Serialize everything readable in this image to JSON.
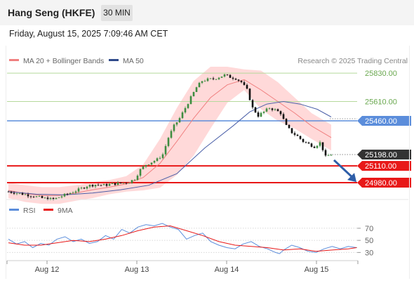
{
  "header": {
    "title": "Hang Seng (HKFE)",
    "timeframe": "30 MIN"
  },
  "datetime": "Friday, August 15, 2025 7:09:46 AM CET",
  "legend": {
    "ma20_bb": "MA 20 + Bollinger Bands",
    "ma50": "MA 50",
    "credit": "Research © 2025 Trading Central"
  },
  "rsi_legend": {
    "rsi": "RSI",
    "ma9": "9MA"
  },
  "colors": {
    "candle_up": "#3d8c40",
    "candle_down": "#111111",
    "bollinger": "#ffcccc",
    "ma20": "#f08080",
    "ma50": "#4a5fa8",
    "resistance": "#b5d99c",
    "pivot": "#5b8ddb",
    "support": "#e81818",
    "rsi": "#5b8ddb",
    "ma9": "#e81818",
    "arrow": "#2e5ea8"
  },
  "chart_data": [
    {
      "type": "candlestick",
      "title": "",
      "ylim": [
        24860,
        25880
      ],
      "x_ticks": [
        "Aug 12",
        "Aug 13",
        "Aug 14",
        "Aug 15"
      ],
      "levels": [
        {
          "role": "resistance",
          "value": 25830,
          "label": "25830.00"
        },
        {
          "role": "resistance",
          "value": 25610,
          "label": "25610.00"
        },
        {
          "role": "pivot",
          "value": 25460,
          "label": "25460.00"
        },
        {
          "role": "support",
          "value": 25110,
          "label": "25110.00"
        },
        {
          "role": "support",
          "value": 24980,
          "label": "24980.00"
        }
      ],
      "last_price": {
        "value": 25198,
        "label": "25198.00"
      },
      "series": [
        {
          "name": "MA 20 + Bollinger Bands"
        },
        {
          "name": "MA 50"
        }
      ],
      "close_points": [
        [
          0,
          24910
        ],
        [
          4,
          24895
        ],
        [
          8,
          24880
        ],
        [
          12,
          24860
        ],
        [
          16,
          24850
        ],
        [
          19,
          24875
        ],
        [
          22,
          24900
        ],
        [
          25,
          24925
        ],
        [
          28,
          24955
        ],
        [
          31,
          24965
        ],
        [
          34,
          24960
        ],
        [
          37,
          24970
        ],
        [
          40,
          24975
        ],
        [
          43,
          24985
        ],
        [
          45,
          25010
        ],
        [
          47,
          25080
        ],
        [
          49,
          25120
        ],
        [
          51,
          25140
        ],
        [
          53,
          25160
        ],
        [
          55,
          25200
        ],
        [
          57,
          25330
        ],
        [
          59,
          25420
        ],
        [
          61,
          25480
        ],
        [
          63,
          25560
        ],
        [
          65,
          25640
        ],
        [
          67,
          25720
        ],
        [
          69,
          25770
        ],
        [
          71,
          25780
        ],
        [
          73,
          25785
        ],
        [
          75,
          25800
        ],
        [
          77,
          25815
        ],
        [
          79,
          25800
        ],
        [
          81,
          25790
        ],
        [
          83,
          25760
        ],
        [
          85,
          25700
        ],
        [
          87,
          25560
        ],
        [
          89,
          25500
        ],
        [
          91,
          25530
        ],
        [
          93,
          25560
        ],
        [
          95,
          25545
        ],
        [
          97,
          25520
        ],
        [
          99,
          25420
        ],
        [
          101,
          25370
        ],
        [
          103,
          25340
        ],
        [
          105,
          25300
        ],
        [
          107,
          25280
        ],
        [
          109,
          25260
        ],
        [
          111,
          25290
        ],
        [
          112,
          25240
        ],
        [
          113,
          25180
        ],
        [
          114,
          25190
        ],
        [
          115,
          25198
        ]
      ],
      "ma20": [
        [
          0,
          24920
        ],
        [
          6,
          24895
        ],
        [
          12,
          24880
        ],
        [
          18,
          24880
        ],
        [
          24,
          24900
        ],
        [
          30,
          24925
        ],
        [
          36,
          24945
        ],
        [
          42,
          24970
        ],
        [
          48,
          25020
        ],
        [
          54,
          25130
        ],
        [
          60,
          25300
        ],
        [
          66,
          25480
        ],
        [
          72,
          25640
        ],
        [
          78,
          25740
        ],
        [
          84,
          25780
        ],
        [
          90,
          25700
        ],
        [
          96,
          25610
        ],
        [
          102,
          25520
        ],
        [
          108,
          25420
        ],
        [
          115,
          25330
        ]
      ],
      "bb_upper": [
        [
          0,
          24980
        ],
        [
          6,
          24960
        ],
        [
          12,
          24945
        ],
        [
          18,
          24945
        ],
        [
          24,
          24960
        ],
        [
          30,
          24985
        ],
        [
          36,
          25000
        ],
        [
          42,
          25030
        ],
        [
          48,
          25120
        ],
        [
          54,
          25320
        ],
        [
          60,
          25560
        ],
        [
          66,
          25770
        ],
        [
          72,
          25880
        ],
        [
          78,
          25880
        ],
        [
          84,
          25860
        ],
        [
          90,
          25850
        ],
        [
          96,
          25760
        ],
        [
          102,
          25640
        ],
        [
          108,
          25520
        ],
        [
          115,
          25430
        ]
      ],
      "bb_lower": [
        [
          0,
          24860
        ],
        [
          6,
          24830
        ],
        [
          12,
          24815
        ],
        [
          18,
          24815
        ],
        [
          24,
          24840
        ],
        [
          30,
          24860
        ],
        [
          36,
          24890
        ],
        [
          42,
          24910
        ],
        [
          48,
          24920
        ],
        [
          54,
          24940
        ],
        [
          60,
          25040
        ],
        [
          66,
          25190
        ],
        [
          72,
          25400
        ],
        [
          78,
          25600
        ],
        [
          84,
          25700
        ],
        [
          90,
          25550
        ],
        [
          96,
          25460
        ],
        [
          102,
          25400
        ],
        [
          108,
          25320
        ],
        [
          115,
          25230
        ]
      ],
      "ma50": [
        [
          0,
          24910
        ],
        [
          10,
          24890
        ],
        [
          20,
          24885
        ],
        [
          30,
          24900
        ],
        [
          40,
          24925
        ],
        [
          50,
          24960
        ],
        [
          60,
          25050
        ],
        [
          70,
          25250
        ],
        [
          80,
          25420
        ],
        [
          86,
          25530
        ],
        [
          92,
          25590
        ],
        [
          98,
          25610
        ],
        [
          104,
          25590
        ],
        [
          110,
          25550
        ],
        [
          115,
          25490
        ]
      ],
      "forecast_arrow": {
        "from": [
          116,
          25155
        ],
        "to": [
          124,
          24985
        ]
      }
    },
    {
      "type": "line",
      "title": "",
      "ylim": [
        20,
        85
      ],
      "y_ticks": [
        "70",
        "50",
        "30"
      ],
      "x_ticks": [
        "Aug 12",
        "Aug 13",
        "Aug 14",
        "Aug 15"
      ],
      "series": [
        {
          "name": "RSI",
          "points": [
            [
              0,
              52
            ],
            [
              4,
              44
            ],
            [
              8,
              48
            ],
            [
              12,
              38
            ],
            [
              16,
              45
            ],
            [
              20,
              42
            ],
            [
              24,
              52
            ],
            [
              28,
              56
            ],
            [
              32,
              48
            ],
            [
              36,
              52
            ],
            [
              40,
              45
            ],
            [
              44,
              48
            ],
            [
              48,
              58
            ],
            [
              52,
              52
            ],
            [
              56,
              68
            ],
            [
              60,
              62
            ],
            [
              64,
              72
            ],
            [
              68,
              76
            ],
            [
              72,
              74
            ],
            [
              76,
              78
            ],
            [
              80,
              72
            ],
            [
              84,
              68
            ],
            [
              88,
              52
            ],
            [
              92,
              58
            ],
            [
              96,
              62
            ],
            [
              100,
              48
            ],
            [
              104,
              42
            ],
            [
              108,
              38
            ],
            [
              112,
              36
            ],
            [
              116,
              44
            ],
            [
              120,
              48
            ],
            [
              124,
              40
            ],
            [
              128,
              36
            ],
            [
              132,
              30
            ],
            [
              134,
              28
            ],
            [
              136,
              34
            ],
            [
              140,
              42
            ],
            [
              144,
              38
            ],
            [
              148,
              32
            ],
            [
              152,
              30
            ],
            [
              156,
              36
            ],
            [
              160,
              40
            ],
            [
              164,
              36
            ],
            [
              168,
              40
            ],
            [
              172,
              38
            ]
          ]
        },
        {
          "name": "9MA",
          "points": [
            [
              0,
              46
            ],
            [
              8,
              42
            ],
            [
              16,
              42
            ],
            [
              24,
              46
            ],
            [
              32,
              50
            ],
            [
              40,
              48
            ],
            [
              48,
              52
            ],
            [
              56,
              58
            ],
            [
              64,
              66
            ],
            [
              72,
              72
            ],
            [
              80,
              74
            ],
            [
              88,
              66
            ],
            [
              96,
              58
            ],
            [
              104,
              48
            ],
            [
              112,
              42
            ],
            [
              120,
              40
            ],
            [
              128,
              38
            ],
            [
              136,
              34
            ],
            [
              144,
              36
            ],
            [
              152,
              32
            ],
            [
              160,
              34
            ],
            [
              168,
              36
            ],
            [
              172,
              38
            ]
          ]
        }
      ]
    }
  ]
}
